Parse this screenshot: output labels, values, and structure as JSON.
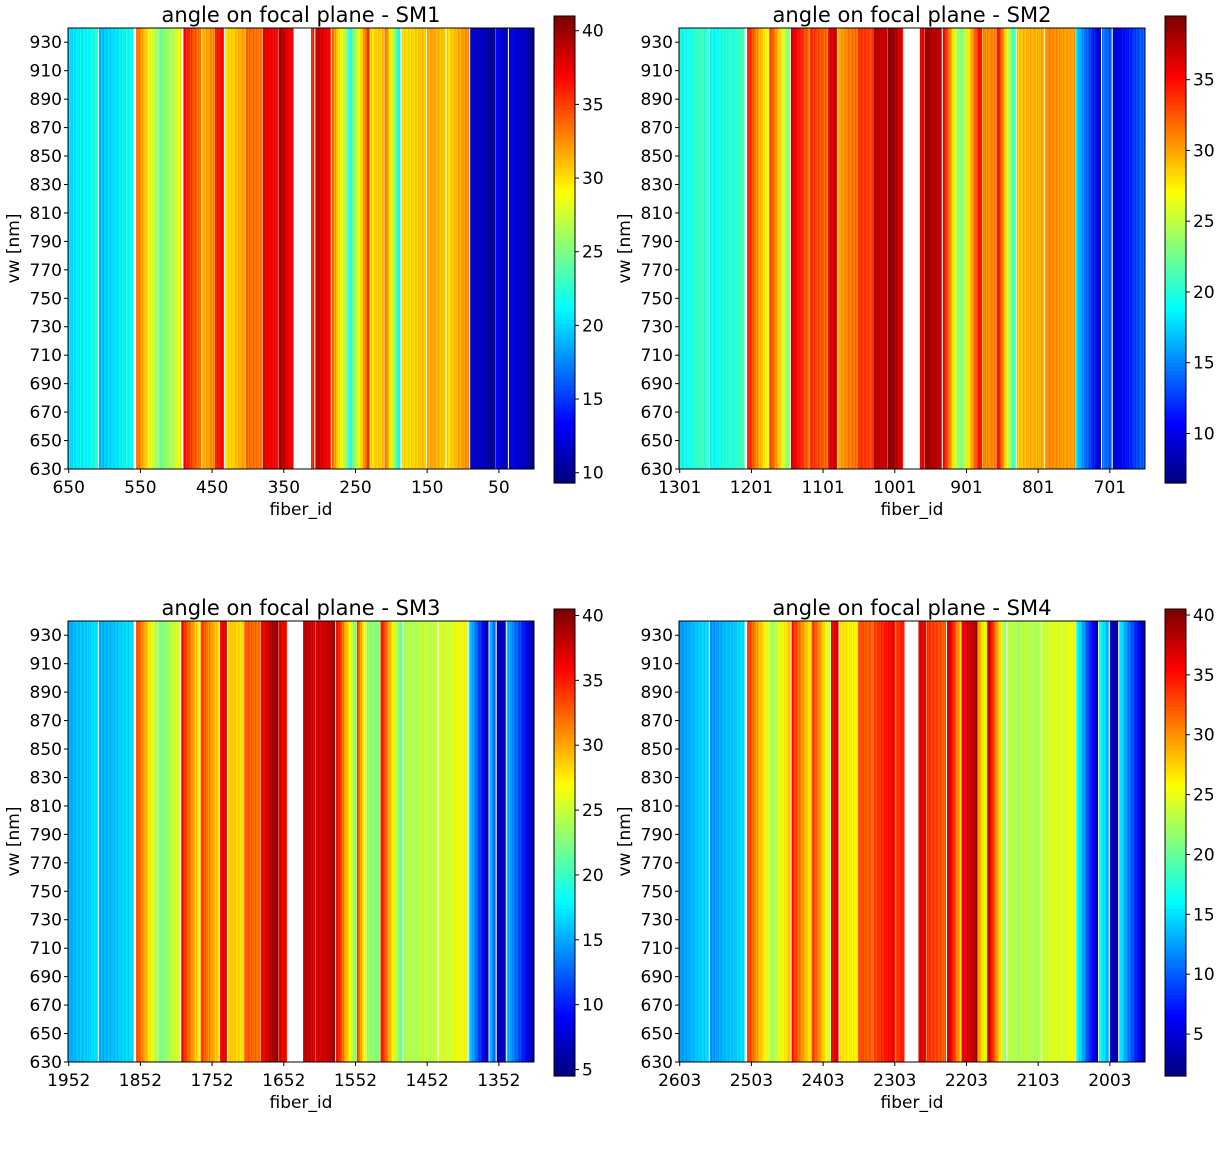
{
  "chart_data": [
    {
      "type": "heatmap",
      "title": "angle on focal plane - SM1",
      "xlabel": "fiber_id",
      "ylabel": "vw [nm]",
      "xlim": [
        651,
        1
      ],
      "ylim": [
        630,
        940
      ],
      "xticks": [
        650,
        550,
        450,
        350,
        250,
        150,
        50
      ],
      "yticks": [
        630,
        650,
        670,
        690,
        710,
        730,
        750,
        770,
        790,
        810,
        830,
        850,
        870,
        890,
        910,
        930
      ],
      "colorbar": {
        "range": [
          9.3,
          41
        ],
        "ticks": [
          10,
          15,
          20,
          25,
          30,
          35,
          40
        ],
        "colormap": "jet"
      },
      "segments": [
        {
          "from": 651,
          "to": 610,
          "v0": 20,
          "v1": 22
        },
        {
          "from": 608,
          "to": 560,
          "v0": 19,
          "v1": 22
        },
        {
          "from": 556,
          "to": 525,
          "v0": 34,
          "v1": 26
        },
        {
          "from": 524,
          "to": 493,
          "v0": 24,
          "v1": 29
        },
        {
          "from": 490,
          "to": 466,
          "v0": 37,
          "v1": 33
        },
        {
          "from": 465,
          "to": 447,
          "v0": 31,
          "v1": 33
        },
        {
          "from": 446,
          "to": 434,
          "v0": 36,
          "v1": 37
        },
        {
          "from": 432,
          "to": 404,
          "v0": 30,
          "v1": 32
        },
        {
          "from": 403,
          "to": 380,
          "v0": 34,
          "v1": 33
        },
        {
          "from": 379,
          "to": 358,
          "v0": 38,
          "v1": 37
        },
        {
          "from": 357,
          "to": 337,
          "v0": 40,
          "v1": 37
        },
        {
          "from": 312,
          "to": 308,
          "v0": 36,
          "v1": 36
        },
        {
          "from": 306,
          "to": 285,
          "v0": 39,
          "v1": 37
        },
        {
          "from": 283,
          "to": 261,
          "v0": 34,
          "v1": 25
        },
        {
          "from": 260,
          "to": 231,
          "v0": 21,
          "v1": 36
        },
        {
          "from": 230,
          "to": 210,
          "v0": 30,
          "v1": 31
        },
        {
          "from": 209,
          "to": 188,
          "v0": 34,
          "v1": 21
        },
        {
          "from": 186,
          "to": 152,
          "v0": 30,
          "v1": 31
        },
        {
          "from": 150,
          "to": 125,
          "v0": 32,
          "v1": 31
        },
        {
          "from": 123,
          "to": 92,
          "v0": 30,
          "v1": 33
        },
        {
          "from": 90,
          "to": 55,
          "v0": 12,
          "v1": 10
        },
        {
          "from": 54,
          "to": 38,
          "v0": 13,
          "v1": 11
        },
        {
          "from": 36,
          "to": 1,
          "v0": 13,
          "v1": 10
        }
      ]
    },
    {
      "type": "heatmap",
      "title": "angle on focal plane - SM2",
      "xlabel": "fiber_id",
      "ylabel": "vw [nm]",
      "xlim": [
        1302,
        652
      ],
      "ylim": [
        630,
        940
      ],
      "xticks": [
        1301,
        1201,
        1101,
        1001,
        901,
        801,
        701
      ],
      "yticks": [
        630,
        650,
        670,
        690,
        710,
        730,
        750,
        770,
        790,
        810,
        830,
        850,
        870,
        890,
        910,
        930
      ],
      "colorbar": {
        "range": [
          6.5,
          39.5
        ],
        "ticks": [
          10,
          15,
          20,
          25,
          30,
          35
        ],
        "colormap": "jet"
      },
      "segments": [
        {
          "from": 1302,
          "to": 1261,
          "v0": 19,
          "v1": 21
        },
        {
          "from": 1259,
          "to": 1211,
          "v0": 19,
          "v1": 21
        },
        {
          "from": 1207,
          "to": 1177,
          "v0": 35,
          "v1": 26
        },
        {
          "from": 1176,
          "to": 1148,
          "v0": 34,
          "v1": 23
        },
        {
          "from": 1146,
          "to": 1121,
          "v0": 37,
          "v1": 32
        },
        {
          "from": 1120,
          "to": 1095,
          "v0": 34,
          "v1": 32
        },
        {
          "from": 1094,
          "to": 1082,
          "v0": 36,
          "v1": 37
        },
        {
          "from": 1080,
          "to": 1054,
          "v0": 30,
          "v1": 32
        },
        {
          "from": 1053,
          "to": 1032,
          "v0": 34,
          "v1": 33
        },
        {
          "from": 1031,
          "to": 1012,
          "v0": 38,
          "v1": 37
        },
        {
          "from": 1011,
          "to": 990,
          "v0": 40,
          "v1": 36
        },
        {
          "from": 966,
          "to": 960,
          "v0": 36,
          "v1": 36
        },
        {
          "from": 959,
          "to": 936,
          "v0": 39,
          "v1": 37
        },
        {
          "from": 934,
          "to": 912,
          "v0": 36,
          "v1": 24
        },
        {
          "from": 911,
          "to": 880,
          "v0": 22,
          "v1": 36
        },
        {
          "from": 879,
          "to": 860,
          "v0": 31,
          "v1": 31
        },
        {
          "from": 859,
          "to": 833,
          "v0": 36,
          "v1": 20
        },
        {
          "from": 831,
          "to": 793,
          "v0": 29,
          "v1": 30
        },
        {
          "from": 791,
          "to": 750,
          "v0": 31,
          "v1": 30
        },
        {
          "from": 749,
          "to": 714,
          "v0": 18,
          "v1": 9
        },
        {
          "from": 712,
          "to": 699,
          "v0": 15,
          "v1": 13
        },
        {
          "from": 697,
          "to": 652,
          "v0": 9,
          "v1": 14
        }
      ]
    },
    {
      "type": "heatmap",
      "title": "angle on focal plane - SM3",
      "xlabel": "fiber_id",
      "ylabel": "vw [nm]",
      "xlim": [
        1953,
        1303
      ],
      "ylim": [
        630,
        940
      ],
      "xticks": [
        1952,
        1852,
        1752,
        1652,
        1552,
        1452,
        1352
      ],
      "yticks": [
        630,
        650,
        670,
        690,
        710,
        730,
        750,
        770,
        790,
        810,
        830,
        850,
        870,
        890,
        910,
        930
      ],
      "colorbar": {
        "range": [
          4.5,
          40.5
        ],
        "ticks": [
          5,
          10,
          15,
          20,
          25,
          30,
          35,
          40
        ],
        "colormap": "jet"
      },
      "segments": [
        {
          "from": 1953,
          "to": 1912,
          "v0": 15,
          "v1": 17
        },
        {
          "from": 1910,
          "to": 1862,
          "v0": 15,
          "v1": 17
        },
        {
          "from": 1858,
          "to": 1828,
          "v0": 34,
          "v1": 24
        },
        {
          "from": 1827,
          "to": 1797,
          "v0": 22,
          "v1": 26
        },
        {
          "from": 1795,
          "to": 1769,
          "v0": 36,
          "v1": 27
        },
        {
          "from": 1768,
          "to": 1742,
          "v0": 34,
          "v1": 28
        },
        {
          "from": 1741,
          "to": 1732,
          "v0": 36,
          "v1": 37
        },
        {
          "from": 1730,
          "to": 1708,
          "v0": 29,
          "v1": 28
        },
        {
          "from": 1707,
          "to": 1685,
          "v0": 33,
          "v1": 32
        },
        {
          "from": 1684,
          "to": 1660,
          "v0": 36,
          "v1": 40
        },
        {
          "from": 1659,
          "to": 1648,
          "v0": 37,
          "v1": 36
        },
        {
          "from": 1625,
          "to": 1609,
          "v0": 39,
          "v1": 37
        },
        {
          "from": 1608,
          "to": 1581,
          "v0": 37,
          "v1": 39
        },
        {
          "from": 1579,
          "to": 1551,
          "v0": 37,
          "v1": 22
        },
        {
          "from": 1550,
          "to": 1537,
          "v0": 34,
          "v1": 25
        },
        {
          "from": 1536,
          "to": 1518,
          "v0": 23,
          "v1": 23
        },
        {
          "from": 1517,
          "to": 1487,
          "v0": 36,
          "v1": 21
        },
        {
          "from": 1485,
          "to": 1438,
          "v0": 24,
          "v1": 25
        },
        {
          "from": 1436,
          "to": 1396,
          "v0": 25,
          "v1": 27
        },
        {
          "from": 1394,
          "to": 1367,
          "v0": 17,
          "v1": 6
        },
        {
          "from": 1365,
          "to": 1357,
          "v0": 16,
          "v1": 12
        },
        {
          "from": 1355,
          "to": 1343,
          "v0": 6,
          "v1": 7
        },
        {
          "from": 1341,
          "to": 1303,
          "v0": 16,
          "v1": 6
        }
      ]
    },
    {
      "type": "heatmap",
      "title": "angle on focal plane - SM4",
      "xlabel": "fiber_id",
      "ylabel": "vw [nm]",
      "xlim": [
        2604,
        1954
      ],
      "ylim": [
        630,
        940
      ],
      "xticks": [
        2603,
        2503,
        2403,
        2303,
        2203,
        2103,
        2003
      ],
      "yticks": [
        630,
        650,
        670,
        690,
        710,
        730,
        750,
        770,
        790,
        810,
        830,
        850,
        870,
        890,
        910,
        930
      ],
      "colorbar": {
        "range": [
          1.5,
          40.5
        ],
        "ticks": [
          5,
          10,
          15,
          20,
          25,
          30,
          35,
          40
        ],
        "colormap": "jet"
      },
      "segments": [
        {
          "from": 2604,
          "to": 2563,
          "v0": 12,
          "v1": 15
        },
        {
          "from": 2561,
          "to": 2513,
          "v0": 12,
          "v1": 15
        },
        {
          "from": 2509,
          "to": 2478,
          "v0": 34,
          "v1": 24
        },
        {
          "from": 2477,
          "to": 2449,
          "v0": 22,
          "v1": 28
        },
        {
          "from": 2447,
          "to": 2420,
          "v0": 35,
          "v1": 26
        },
        {
          "from": 2419,
          "to": 2393,
          "v0": 34,
          "v1": 24
        },
        {
          "from": 2392,
          "to": 2382,
          "v0": 36,
          "v1": 37
        },
        {
          "from": 2380,
          "to": 2355,
          "v0": 27,
          "v1": 26
        },
        {
          "from": 2354,
          "to": 2334,
          "v0": 33,
          "v1": 32
        },
        {
          "from": 2333,
          "to": 2303,
          "v0": 33,
          "v1": 36
        },
        {
          "from": 2302,
          "to": 2290,
          "v0": 33,
          "v1": 35
        },
        {
          "from": 2270,
          "to": 2260,
          "v0": 37,
          "v1": 36
        },
        {
          "from": 2259,
          "to": 2232,
          "v0": 34,
          "v1": 32
        },
        {
          "from": 2230,
          "to": 2211,
          "v0": 39,
          "v1": 28
        },
        {
          "from": 2210,
          "to": 2188,
          "v0": 36,
          "v1": 39
        },
        {
          "from": 2187,
          "to": 2175,
          "v0": 30,
          "v1": 24
        },
        {
          "from": 2174,
          "to": 2148,
          "v0": 39,
          "v1": 21
        },
        {
          "from": 2146,
          "to": 2100,
          "v0": 23,
          "v1": 23
        },
        {
          "from": 2098,
          "to": 2052,
          "v0": 24,
          "v1": 25
        },
        {
          "from": 2050,
          "to": 2020,
          "v0": 17,
          "v1": 3
        },
        {
          "from": 2018,
          "to": 2005,
          "v0": 17,
          "v1": 13
        },
        {
          "from": 2003,
          "to": 1992,
          "v0": 3,
          "v1": 4
        },
        {
          "from": 1990,
          "to": 1954,
          "v0": 16,
          "v1": 3
        }
      ]
    }
  ]
}
